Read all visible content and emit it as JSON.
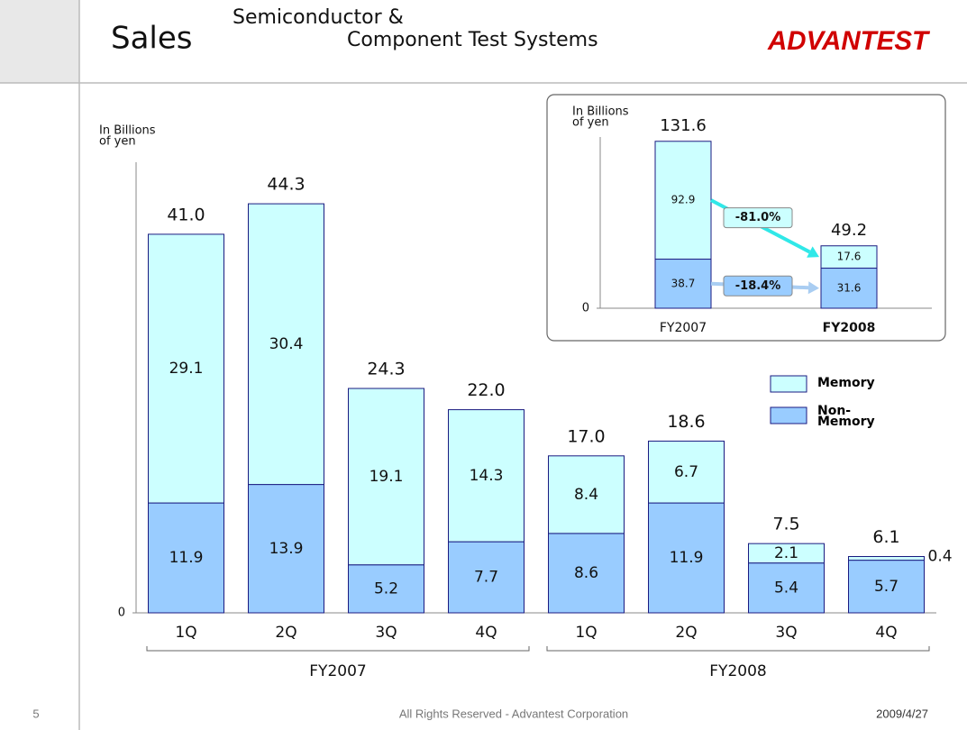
{
  "header": {
    "title": "Sales",
    "subtitle": [
      "Semiconductor &",
      "Component Test Systems"
    ],
    "logo": "ADVANTEST"
  },
  "footer": {
    "page": "5",
    "copyright": "All Rights Reserved - Advantest Corporation",
    "date": "2009/4/27"
  },
  "chart_data": [
    {
      "type": "stacked_bar",
      "y_label": [
        "In Billions",
        "of yen"
      ],
      "categories": [
        "1Q",
        "2Q",
        "3Q",
        "4Q",
        "1Q",
        "2Q",
        "3Q",
        "4Q"
      ],
      "groups": [
        "FY2007",
        "FY2008"
      ],
      "series": [
        {
          "name": "Non-Memory",
          "color": "#99ccff",
          "values": [
            11.9,
            13.9,
            5.2,
            7.7,
            8.6,
            11.9,
            5.4,
            5.7
          ]
        },
        {
          "name": "Memory",
          "color": "#ccffff",
          "values": [
            29.1,
            30.4,
            19.1,
            14.3,
            8.4,
            6.7,
            2.1,
            0.4
          ]
        }
      ],
      "totals": {
        "values": [
          41.0,
          44.3,
          24.3,
          22.0,
          17.0,
          18.6,
          7.5,
          6.1
        ],
        "value_labels": [
          "41.0",
          "44.3",
          "24.3",
          "22.0",
          "17.0",
          "18.6",
          "7.5",
          "6.1"
        ]
      },
      "ylim": [
        0,
        48.8
      ],
      "yticks": [
        0
      ]
    },
    {
      "type": "stacked_bar",
      "y_label": [
        "In Billions",
        "of yen"
      ],
      "categories": [
        "FY2007",
        "FY2008"
      ],
      "series": [
        {
          "name": "Non-Memory",
          "color": "#99ccff",
          "values": [
            38.7,
            31.6
          ]
        },
        {
          "name": "Memory",
          "color": "#ccffff",
          "values": [
            92.9,
            17.6
          ]
        }
      ],
      "totals": {
        "values": [
          131.6,
          49.2
        ],
        "value_labels": [
          "131.6",
          "49.2"
        ]
      },
      "changes": {
        "values": [
          -18.4,
          -81.0
        ],
        "value_labels": [
          "-18.4%",
          "-81.0%"
        ]
      },
      "ylim": [
        0,
        135
      ],
      "yticks": [
        0
      ]
    }
  ]
}
